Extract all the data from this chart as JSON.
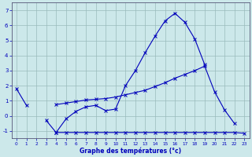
{
  "xlabel": "Graphe des températures (°c)",
  "hours": [
    0,
    1,
    2,
    3,
    4,
    5,
    6,
    7,
    8,
    9,
    10,
    11,
    12,
    13,
    14,
    15,
    16,
    17,
    18,
    19,
    20,
    21,
    22,
    23
  ],
  "line1": [
    1.8,
    0.7,
    null,
    -0.3,
    -1.1,
    -0.2,
    0.3,
    0.6,
    0.7,
    0.35,
    0.45,
    2.0,
    3.0,
    4.2,
    5.3,
    6.3,
    6.8,
    6.2,
    5.1,
    3.4,
    null,
    null,
    null,
    null
  ],
  "line2": [
    null,
    null,
    null,
    null,
    -1.1,
    -1.1,
    -1.1,
    -1.1,
    -1.1,
    -1.1,
    -1.1,
    -1.1,
    -1.1,
    -1.1,
    -1.1,
    -1.1,
    -1.1,
    -1.1,
    -1.1,
    -1.1,
    -1.1,
    -1.1,
    -1.1,
    -1.15
  ],
  "line3": [
    null,
    null,
    null,
    null,
    0.75,
    0.85,
    0.95,
    1.05,
    1.1,
    1.15,
    1.25,
    1.4,
    1.55,
    1.7,
    1.95,
    2.2,
    2.5,
    2.75,
    3.0,
    3.3,
    1.6,
    0.4,
    -0.5,
    null
  ],
  "ylim": [
    -1.5,
    7.5
  ],
  "xlim": [
    -0.5,
    23.5
  ],
  "yticks": [
    -1,
    0,
    1,
    2,
    3,
    4,
    5,
    6,
    7
  ],
  "bg_color": "#cce8ea",
  "line_color": "#0000bb",
  "grid_color": "#99bbbb",
  "marker": "x",
  "markersize": 3
}
